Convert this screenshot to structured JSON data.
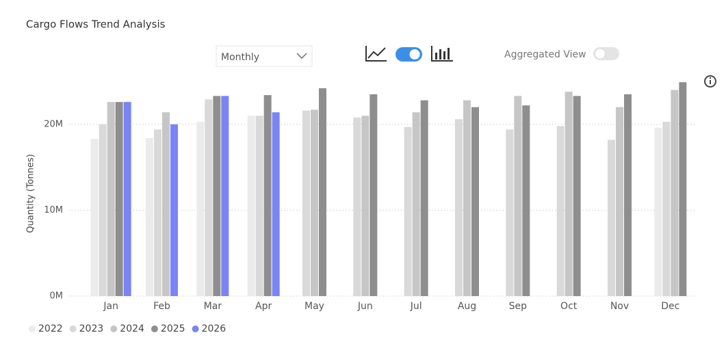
{
  "chart_data": {
    "type": "bar",
    "title": "Cargo Flows Trend Analysis",
    "y_label": "Quantity (Tonnes)",
    "categories": [
      "Jan",
      "Feb",
      "Mar",
      "Apr",
      "May",
      "Jun",
      "Jul",
      "Aug",
      "Sep",
      "Oct",
      "Nov",
      "Dec"
    ],
    "series": [
      {
        "name": "2022",
        "color": "#ebebeb",
        "values": [
          18300000,
          18400000,
          20300000,
          21000000,
          null,
          null,
          null,
          null,
          null,
          null,
          null,
          19600000
        ]
      },
      {
        "name": "2023",
        "color": "#d9d9d9",
        "values": [
          20000000,
          19400000,
          22900000,
          21000000,
          21600000,
          20800000,
          19700000,
          20600000,
          19400000,
          19800000,
          18200000,
          20300000
        ]
      },
      {
        "name": "2024",
        "color": "#c6c6c6",
        "values": [
          22600000,
          21400000,
          null,
          null,
          21700000,
          21000000,
          21400000,
          22800000,
          23300000,
          23800000,
          22000000,
          24000000
        ]
      },
      {
        "name": "2025",
        "color": "#8e8e8e",
        "values": [
          22600000,
          null,
          23300000,
          23400000,
          24200000,
          23500000,
          22800000,
          22000000,
          22200000,
          23300000,
          23500000,
          24900000
        ]
      },
      {
        "name": "2026",
        "color": "#7a84f5",
        "values": [
          22600000,
          20000000,
          23300000,
          21400000,
          null,
          null,
          null,
          null,
          null,
          null,
          null,
          null
        ]
      }
    ],
    "ylim": [
      0,
      25000000
    ],
    "yticks": [
      {
        "value": 0,
        "label": "0M"
      },
      {
        "value": 10000000,
        "label": "10M"
      },
      {
        "value": 20000000,
        "label": "20M"
      }
    ],
    "grid": true,
    "legend": "bottom-left"
  },
  "controls": {
    "period": "Monthly",
    "toggle_label": "Aggregated View"
  }
}
